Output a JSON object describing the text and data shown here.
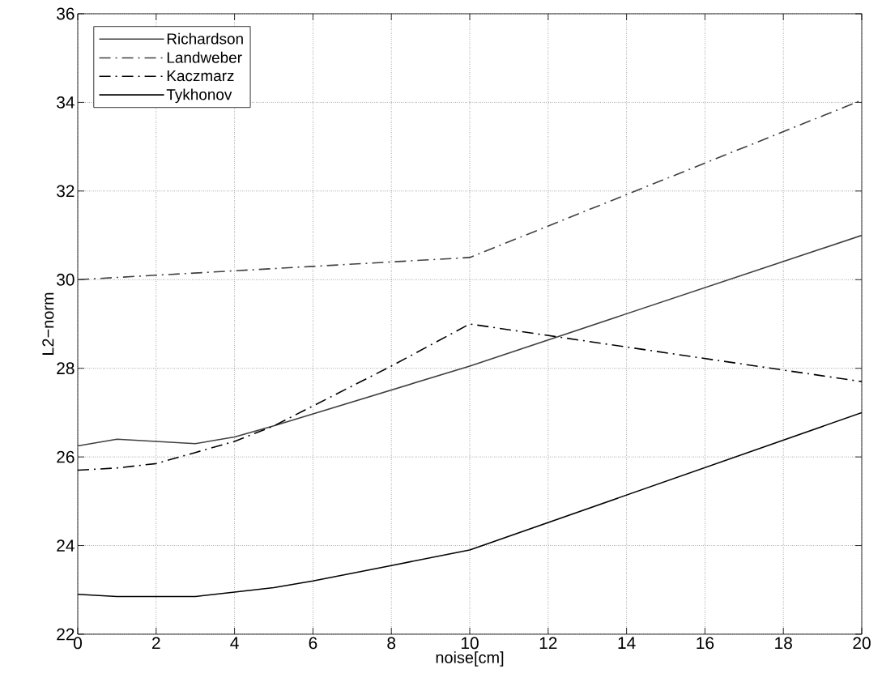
{
  "chart_data": {
    "type": "line",
    "xlabel": "noise[cm]",
    "ylabel": "L2−norm",
    "xlim": [
      0,
      20
    ],
    "ylim": [
      22,
      36
    ],
    "xticks": [
      0,
      2,
      4,
      6,
      8,
      10,
      12,
      14,
      16,
      18,
      20
    ],
    "yticks": [
      22,
      24,
      26,
      28,
      30,
      32,
      34,
      36
    ],
    "grid": true,
    "legend": "top left",
    "series": [
      {
        "name": "Richardson",
        "color": "#404040",
        "line_style": "solid",
        "x": [
          0,
          1,
          3,
          4,
          5,
          10,
          20
        ],
        "values": [
          26.25,
          26.4,
          26.3,
          26.45,
          26.7,
          28.05,
          31.0
        ]
      },
      {
        "name": "Landweber",
        "color": "#404040",
        "line_style": "dashdot",
        "x": [
          0,
          2,
          4,
          6,
          8,
          10,
          20
        ],
        "values": [
          30.0,
          30.1,
          30.2,
          30.3,
          30.4,
          30.5,
          34.05
        ]
      },
      {
        "name": "Kaczmarz",
        "color": "#000000",
        "line_style": "dashdot",
        "x": [
          0,
          1,
          2,
          3,
          4,
          5,
          8,
          10,
          20
        ],
        "values": [
          25.7,
          25.75,
          25.85,
          26.1,
          26.35,
          26.7,
          28.05,
          29.0,
          27.7
        ]
      },
      {
        "name": "Tykhonov",
        "color": "#000000",
        "line_style": "solid",
        "x": [
          0,
          1,
          3,
          4,
          5,
          6,
          8,
          10,
          20
        ],
        "values": [
          22.9,
          22.85,
          22.85,
          22.95,
          23.05,
          23.2,
          23.55,
          23.9,
          27.0
        ]
      }
    ]
  }
}
